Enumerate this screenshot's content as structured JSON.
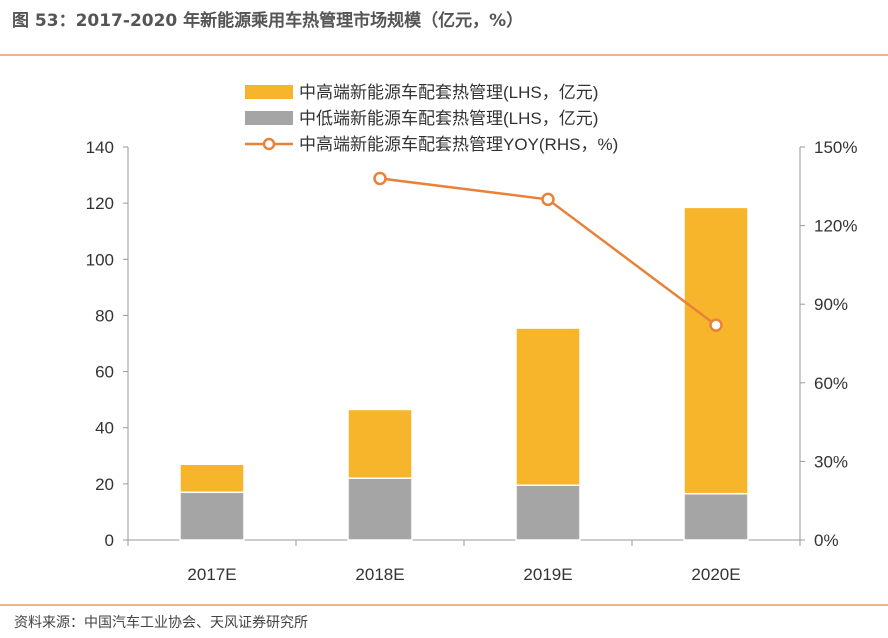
{
  "title": "图 53：2017-2020 年新能源乘用车热管理市场规模（亿元，%）",
  "source": "资料来源：中国汽车工业协会、天风证券研究所",
  "chart_data": {
    "type": "bar",
    "stacked": true,
    "categories": [
      "2017E",
      "2018E",
      "2019E",
      "2020E"
    ],
    "series": [
      {
        "name": "中低端新能源车配套热管理(LHS，亿元)",
        "type": "bar",
        "axis": "left",
        "color": "#A5A5A5",
        "values": [
          17,
          22,
          19.5,
          16.5
        ]
      },
      {
        "name": "中高端新能源车配套热管理(LHS，亿元)",
        "type": "bar",
        "axis": "left",
        "color": "#F7B52C",
        "values": [
          10,
          24.5,
          56,
          102
        ]
      },
      {
        "name": "中高端新能源车配套热管理YOY(RHS，%)",
        "type": "line",
        "axis": "right",
        "color": "#E8823A",
        "values": [
          null,
          138,
          130,
          82
        ]
      }
    ],
    "legend_order": [
      1,
      0,
      2
    ],
    "legend_position": "top",
    "left_axis": {
      "range": [
        0,
        140
      ],
      "ticks": [
        "0",
        "20",
        "40",
        "60",
        "80",
        "100",
        "120",
        "140"
      ]
    },
    "right_axis": {
      "range": [
        0,
        150
      ],
      "ticks": [
        "0%",
        "30%",
        "60%",
        "90%",
        "120%",
        "150%"
      ]
    },
    "grid": false
  }
}
